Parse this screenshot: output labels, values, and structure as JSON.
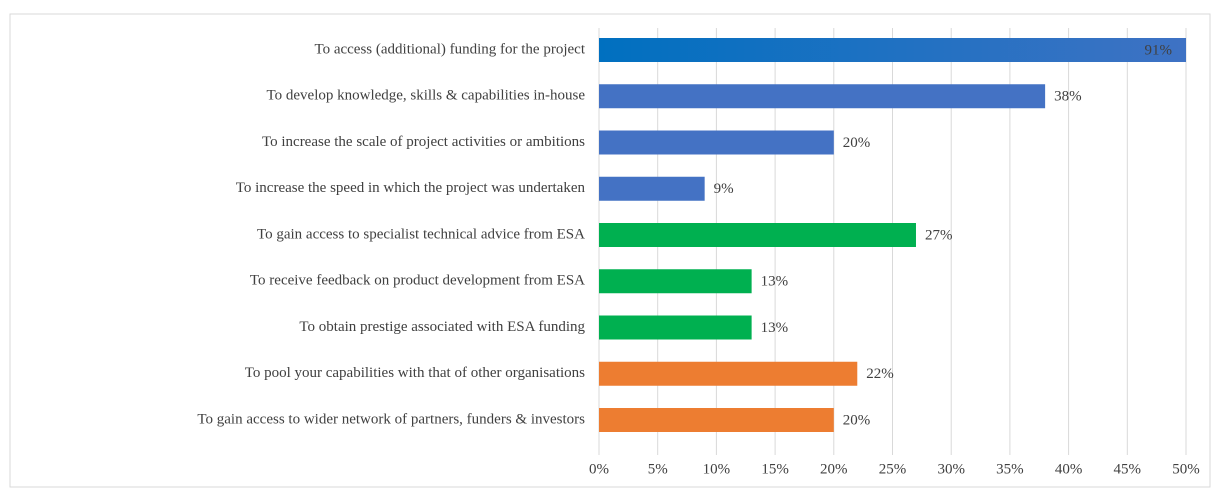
{
  "chart_data": {
    "type": "bar",
    "orientation": "horizontal",
    "categories": [
      "To access (additional) funding for the project",
      "To develop knowledge, skills & capabilities in-house",
      "To increase the scale of project activities or ambitions",
      "To increase the speed in which the project was undertaken",
      "To gain access to specialist technical advice from ESA",
      "To receive feedback on product development from ESA",
      "To obtain prestige associated with ESA funding",
      "To pool your capabilities with that of other organisations",
      "To gain access to wider network of partners, funders & investors"
    ],
    "values": [
      91,
      38,
      20,
      9,
      27,
      13,
      13,
      22,
      20
    ],
    "value_labels": [
      "91%",
      "38%",
      "20%",
      "9%",
      "27%",
      "13%",
      "13%",
      "22%",
      "20%"
    ],
    "colors": [
      "#4472c4",
      "#4472c4",
      "#4472c4",
      "#4472c4",
      "#00b050",
      "#00b050",
      "#00b050",
      "#ed7d31",
      "#ed7d31"
    ],
    "xlim": [
      0,
      50
    ],
    "xticks": [
      {
        "value": 0,
        "label": "0%"
      },
      {
        "value": 5,
        "label": "5%"
      },
      {
        "value": 10,
        "label": "10%"
      },
      {
        "value": 15,
        "label": "15%"
      },
      {
        "value": 20,
        "label": "20%"
      },
      {
        "value": 25,
        "label": "25%"
      },
      {
        "value": 30,
        "label": "30%"
      },
      {
        "value": 35,
        "label": "35%"
      },
      {
        "value": 40,
        "label": "40%"
      },
      {
        "value": 45,
        "label": "45%"
      },
      {
        "value": 50,
        "label": "50%"
      }
    ],
    "grid": true
  }
}
